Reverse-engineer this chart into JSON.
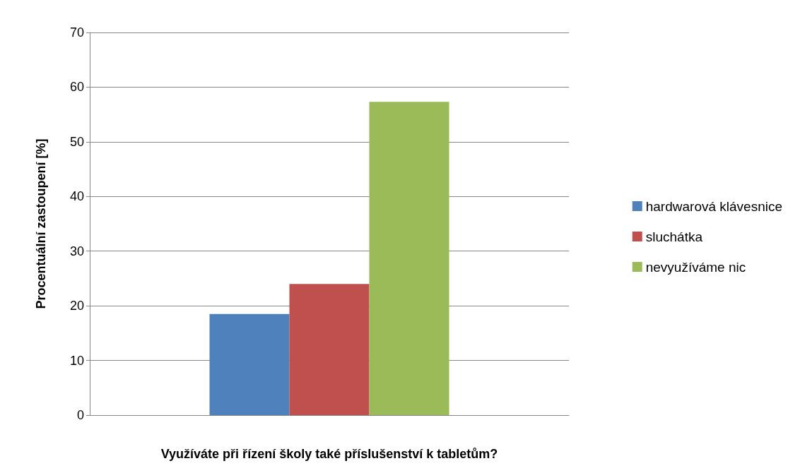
{
  "chart_data": {
    "type": "bar",
    "xlabel": "Využíváte při řízení školy také příslušenství k tabletům?",
    "ylabel": "Procentuální zastoupení [%]",
    "categories": [
      null
    ],
    "series": [
      {
        "name": "hardwarová klávesnice",
        "color": "#4f81bd",
        "values": [
          18.5
        ]
      },
      {
        "name": "sluchátka",
        "color": "#c0504d",
        "values": [
          24
        ]
      },
      {
        "name": "nevyužíváme nic",
        "color": "#9bbb59",
        "values": [
          57.3
        ]
      }
    ],
    "ylim": [
      0,
      70
    ],
    "yticks": [
      0,
      10,
      20,
      30,
      40,
      50,
      60,
      70
    ],
    "grid": "y",
    "legend": "right"
  }
}
